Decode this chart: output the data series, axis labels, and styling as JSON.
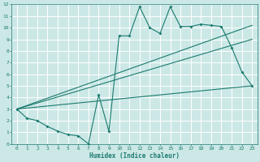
{
  "xlabel": "Humidex (Indice chaleur)",
  "bg_color": "#cce8e6",
  "grid_color": "#ffffff",
  "line_color": "#1a7a6e",
  "xlim": [
    -0.5,
    23.5
  ],
  "ylim": [
    0,
    12
  ],
  "xticks": [
    0,
    1,
    2,
    3,
    4,
    5,
    6,
    7,
    8,
    9,
    10,
    11,
    12,
    13,
    14,
    15,
    16,
    17,
    18,
    19,
    20,
    21,
    22,
    23
  ],
  "yticks": [
    0,
    1,
    2,
    3,
    4,
    5,
    6,
    7,
    8,
    9,
    10,
    11,
    12
  ],
  "line1_x": [
    0,
    1,
    2,
    3,
    4,
    5,
    6,
    7,
    8,
    9,
    10,
    11,
    12,
    13,
    14,
    15,
    16,
    17,
    18,
    19,
    20,
    21,
    22,
    23
  ],
  "line1_y": [
    3,
    2.2,
    2.0,
    1.5,
    1.1,
    0.8,
    0.7,
    0.0,
    4.2,
    1.1,
    9.3,
    9.3,
    11.8,
    10.0,
    9.5,
    11.8,
    10.1,
    10.1,
    10.3,
    10.2,
    10.1,
    8.3,
    6.2,
    5.0
  ],
  "line2_x": [
    0,
    23
  ],
  "line2_y": [
    3,
    10.2
  ],
  "line3_x": [
    0,
    23
  ],
  "line3_y": [
    3,
    9.0
  ],
  "line4_x": [
    0,
    23
  ],
  "line4_y": [
    3,
    5.0
  ]
}
